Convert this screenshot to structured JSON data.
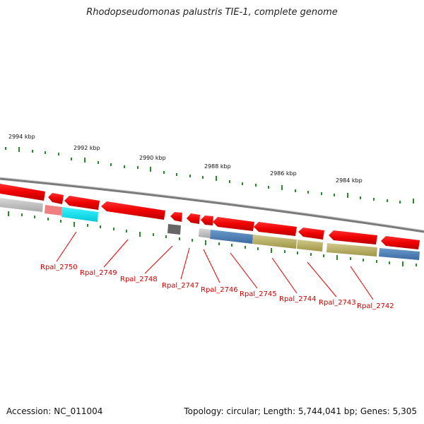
{
  "title": "Rhodopseudomonas palustris TIE-1, complete genome",
  "footer": {
    "accession": "Accession: NC_011004",
    "summary": "Topology: circular; Length: 5,744,041 bp; Genes: 5,305"
  },
  "colors": {
    "backbone": "#8a8a8a",
    "cds": "#ee0000",
    "tick": "#2a8a2a",
    "label": "#cc0000",
    "track_grey": "#b8b8b8",
    "track_pink": "#f08080",
    "track_cyan": "#00e8f0",
    "track_dark": "#666666",
    "track_blue": "#4a7fb8",
    "track_olive": "#b8ae60"
  },
  "kbp_markers": [
    "2994 kbp",
    "2992 kbp",
    "2990 kbp",
    "2988 kbp",
    "2986 kbp",
    "2984 kbp"
  ],
  "gene_labels": [
    "Rpal_2750",
    "Rpal_2749",
    "Rpal_2748",
    "Rpal_2747",
    "Rpal_2746",
    "Rpal_2745",
    "Rpal_2744",
    "Rpal_2743",
    "Rpal_2742"
  ]
}
